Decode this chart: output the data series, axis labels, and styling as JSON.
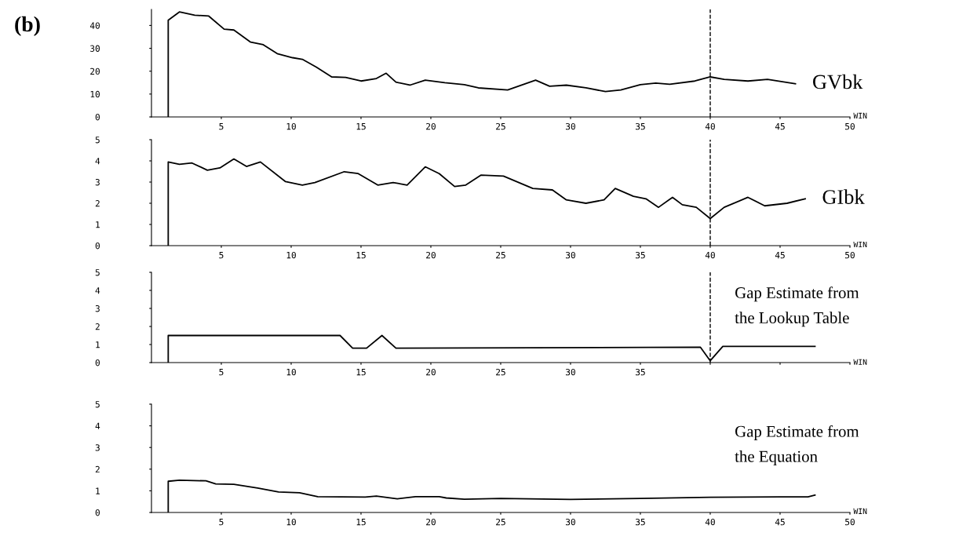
{
  "chart_data": [
    {
      "type": "line",
      "annotations": [
        "(b)"
      ],
      "xlabel": "WIN",
      "xlim": [
        0,
        50
      ],
      "xticks": [
        5,
        10,
        15,
        20,
        25,
        30,
        35,
        40,
        45,
        50
      ],
      "ylim": [
        0,
        47
      ],
      "yticks": [
        0,
        10,
        20,
        30,
        40
      ],
      "grid": false,
      "legend": false,
      "line_style": "solid",
      "ref_lines": [
        {
          "axis": "x",
          "value": 40,
          "label": null,
          "line_style": "dashed",
          "color": "#000000"
        }
      ],
      "series": [
        {
          "name": "GVbk",
          "color": "#000000",
          "x": [
            1.2,
            1.2,
            2.0,
            3.1,
            4.1,
            5.2,
            5.9,
            7.1,
            8.0,
            9.0,
            10.1,
            10.8,
            11.8,
            12.9,
            13.9,
            15.0,
            16.1,
            16.8,
            17.5,
            18.5,
            19.6,
            21.0,
            22.4,
            23.4,
            25.5,
            27.5,
            28.5,
            29.7,
            31.1,
            32.5,
            33.6,
            35.0,
            36.1,
            37.1,
            38.9,
            40.0,
            41.0,
            42.7,
            44.1,
            46.1
          ],
          "values": [
            0,
            42.3,
            45.9,
            44.5,
            44.1,
            38.4,
            38.0,
            32.7,
            31.6,
            27.7,
            25.9,
            25.2,
            21.8,
            17.5,
            17.3,
            15.7,
            16.8,
            19.1,
            15.2,
            13.9,
            16.1,
            15.0,
            14.1,
            12.7,
            11.8,
            16.1,
            13.4,
            13.9,
            12.7,
            11.1,
            11.8,
            14.1,
            14.8,
            14.3,
            15.7,
            17.5,
            16.4,
            15.7,
            16.4,
            14.5
          ]
        }
      ]
    },
    {
      "type": "line",
      "xlabel": "WIN",
      "xlim": [
        0,
        50
      ],
      "xticks": [
        5,
        10,
        15,
        20,
        25,
        30,
        35,
        40,
        45,
        50
      ],
      "ylim": [
        0,
        5
      ],
      "yticks": [
        0,
        1,
        2,
        3,
        4,
        5
      ],
      "grid": false,
      "legend": false,
      "line_style": "solid",
      "ref_lines": [
        {
          "axis": "x",
          "value": 40,
          "label": null,
          "line_style": "dashed",
          "color": "#000000"
        }
      ],
      "series": [
        {
          "name": "GIbk",
          "color": "#000000",
          "x": [
            1.2,
            1.2,
            2.0,
            2.9,
            4.0,
            4.9,
            5.9,
            6.8,
            7.8,
            9.6,
            10.8,
            11.7,
            13.8,
            14.8,
            16.2,
            17.3,
            18.3,
            19.6,
            20.6,
            21.7,
            22.5,
            23.6,
            25.2,
            27.3,
            28.7,
            29.7,
            31.1,
            32.4,
            33.2,
            34.5,
            35.4,
            36.3,
            37.3,
            38.0,
            39.0,
            40.0,
            41.0,
            42.7,
            43.9,
            45.5,
            46.8
          ],
          "values": [
            0,
            3.95,
            3.84,
            3.9,
            3.56,
            3.67,
            4.09,
            3.74,
            3.95,
            3.02,
            2.86,
            2.98,
            3.49,
            3.4,
            2.86,
            2.98,
            2.86,
            3.72,
            3.4,
            2.79,
            2.86,
            3.33,
            3.28,
            2.7,
            2.63,
            2.16,
            2.0,
            2.16,
            2.7,
            2.33,
            2.21,
            1.81,
            2.28,
            1.93,
            1.81,
            1.28,
            1.81,
            2.28,
            1.88,
            2.0,
            2.21
          ]
        }
      ]
    },
    {
      "type": "line",
      "xlabel": "WIN",
      "xlim": [
        0,
        50
      ],
      "xticks": [
        5,
        10,
        15,
        20,
        25,
        30,
        35,
        {
          "value": 40,
          "label": null
        },
        {
          "value": 45,
          "label": null
        },
        {
          "value": 50,
          "label": null
        }
      ],
      "ylim": [
        0,
        5
      ],
      "yticks": [
        0,
        1,
        2,
        3,
        4,
        5
      ],
      "grid": false,
      "legend": false,
      "line_style": "solid",
      "ref_lines": [
        {
          "axis": "x",
          "value": 40,
          "label": null,
          "line_style": "dashed",
          "color": "#000000"
        }
      ],
      "series": [
        {
          "name": "Gap Estimate from\nthe Lookup Table",
          "color": "#000000",
          "x": [
            1.2,
            1.2,
            13.5,
            14.4,
            15.4,
            16.5,
            17.5,
            39.3,
            40.0,
            40.9,
            47.5
          ],
          "values": [
            0,
            1.5,
            1.5,
            0.8,
            0.8,
            1.5,
            0.8,
            0.85,
            0.1,
            0.9,
            0.9
          ]
        }
      ]
    },
    {
      "type": "line",
      "xlabel": "WIN",
      "xlim": [
        0,
        50
      ],
      "xticks": [
        5,
        10,
        15,
        20,
        25,
        30,
        35,
        40,
        45,
        50
      ],
      "ylim": [
        0,
        5
      ],
      "yticks": [
        0,
        1,
        2,
        3,
        4,
        5
      ],
      "grid": false,
      "legend": false,
      "line_style": "solid",
      "series": [
        {
          "name": "Gap Estimate from\nthe Equation",
          "color": "#000000",
          "x": [
            1.2,
            1.2,
            2.0,
            3.9,
            4.6,
            5.9,
            7.6,
            9.1,
            10.6,
            11.9,
            15.3,
            16.1,
            17.6,
            18.9,
            20.6,
            21.1,
            22.4,
            25.0,
            30.0,
            35.0,
            40.0,
            45.0,
            47.0,
            47.5
          ],
          "values": [
            0,
            1.44,
            1.49,
            1.46,
            1.32,
            1.3,
            1.13,
            0.95,
            0.91,
            0.73,
            0.71,
            0.76,
            0.63,
            0.73,
            0.73,
            0.67,
            0.61,
            0.65,
            0.6,
            0.65,
            0.7,
            0.72,
            0.72,
            0.8
          ]
        }
      ]
    }
  ]
}
